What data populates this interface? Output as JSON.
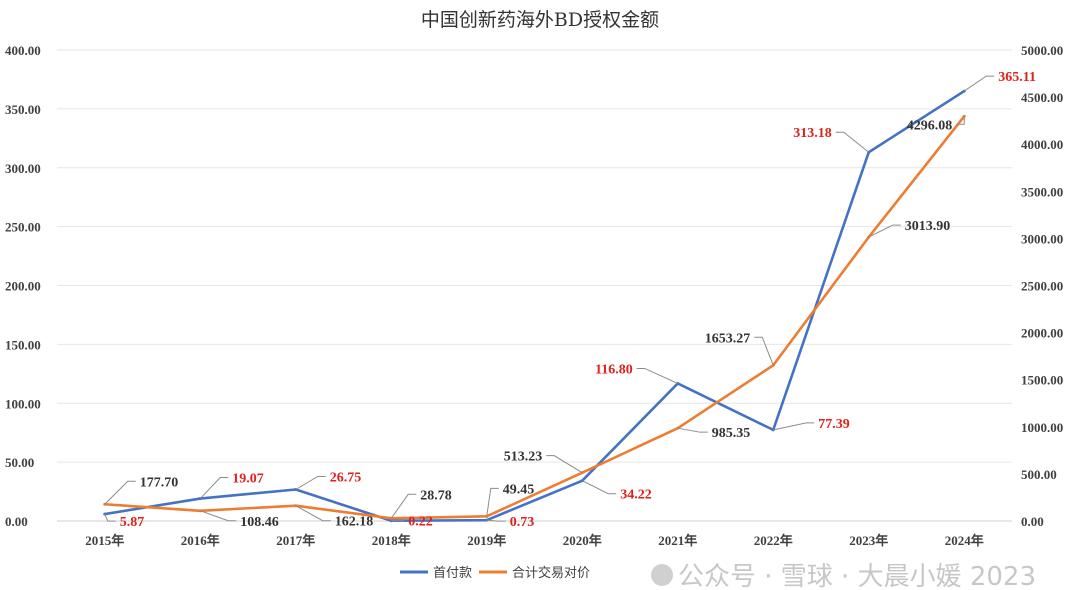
{
  "chart_data": {
    "type": "line",
    "title": "中国创新药海外BD授权金额",
    "categories": [
      "2015年",
      "2016年",
      "2017年",
      "2018年",
      "2019年",
      "2020年",
      "2021年",
      "2022年",
      "2023年",
      "2024年"
    ],
    "series": [
      {
        "name": "首付款",
        "axis": "left",
        "color": "#4472C4",
        "label_color": "#E0201B",
        "values": [
          5.87,
          19.07,
          26.75,
          0.22,
          0.73,
          34.22,
          116.8,
          77.39,
          313.18,
          365.11
        ],
        "labels": [
          "5.87",
          "19.07",
          "26.75",
          "0.22",
          "0.73",
          "34.22",
          "116.80",
          "77.39",
          "313.18",
          "365.11"
        ]
      },
      {
        "name": "合计交易对价",
        "axis": "right",
        "color": "#ED7D31",
        "label_color": "#333333",
        "values": [
          177.7,
          108.46,
          162.18,
          28.78,
          49.45,
          513.23,
          985.35,
          1653.27,
          3013.9,
          4296.08
        ],
        "labels": [
          "177.70",
          "108.46",
          "162.18",
          "28.78",
          "49.45",
          "513.23",
          "985.35",
          "1653.27",
          "3013.90",
          "4296.08"
        ]
      }
    ],
    "y_left": {
      "lim": [
        0,
        400
      ],
      "ticks": [
        "0.00",
        "50.00",
        "100.00",
        "150.00",
        "200.00",
        "250.00",
        "300.00",
        "350.00",
        "400.00"
      ]
    },
    "y_right": {
      "lim": [
        0,
        5000
      ],
      "ticks": [
        "0.00",
        "500.00",
        "1000.00",
        "1500.00",
        "2000.00",
        "2500.00",
        "3000.00",
        "3500.00",
        "4000.00",
        "4500.00",
        "5000.00"
      ]
    },
    "grid": true,
    "legend": "bottom"
  },
  "watermark": "公众号 · 雪球 · 大晨小媛 2023"
}
